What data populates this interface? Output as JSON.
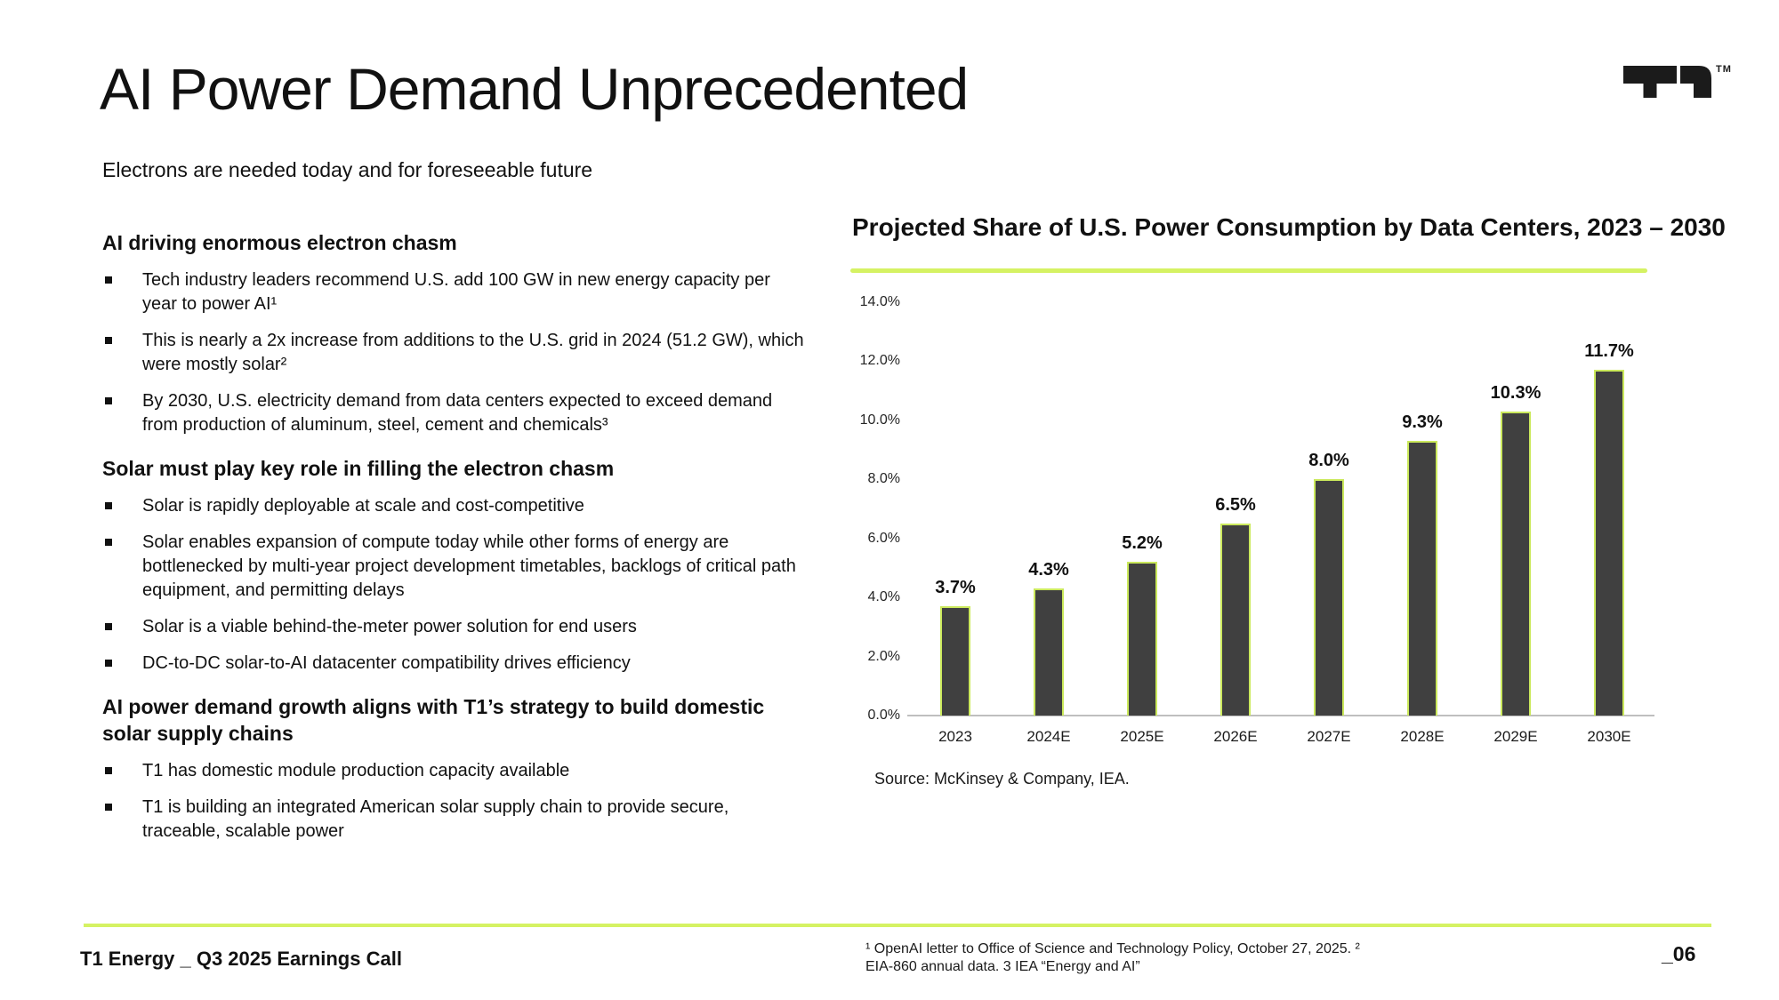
{
  "slide": {
    "title": "AI Power Demand Unprecedented",
    "subtitle": "Electrons are needed today and for foreseeable future"
  },
  "logo": {
    "name": "T1",
    "tm": "TM"
  },
  "left": {
    "sections": [
      {
        "heading": "AI driving enormous electron chasm",
        "bullets": [
          "Tech industry leaders recommend U.S. add 100 GW in new energy capacity per year to power AI¹",
          "This is nearly a 2x increase from additions to the U.S. grid in 2024 (51.2 GW), which were mostly solar²",
          "By 2030, U.S. electricity demand from data centers expected to exceed demand from production of aluminum, steel, cement and chemicals³"
        ]
      },
      {
        "heading": "Solar must play key role in filling the electron chasm",
        "bullets": [
          "Solar is rapidly deployable at scale and cost-competitive",
          "Solar enables expansion of compute today while other forms of energy are bottlenecked by multi-year project development timetables, backlogs of critical path equipment, and permitting delays",
          "Solar is a viable behind-the-meter power solution for end users",
          "DC-to-DC solar-to-AI datacenter compatibility drives efficiency"
        ]
      },
      {
        "heading": "AI power demand growth aligns with T1’s strategy to build domestic solar supply chains",
        "bullets": [
          "T1 has domestic module production capacity available",
          "T1 is building an integrated American solar supply chain to provide secure, traceable, scalable power"
        ]
      }
    ]
  },
  "chart_data": {
    "type": "bar",
    "title": "Projected Share of U.S. Power Consumption by Data Centers, 2023 – 2030",
    "categories": [
      "2023",
      "2024E",
      "2025E",
      "2026E",
      "2027E",
      "2028E",
      "2029E",
      "2030E"
    ],
    "values": [
      3.7,
      4.3,
      5.2,
      6.5,
      8.0,
      9.3,
      10.3,
      11.7
    ],
    "value_labels": [
      "3.7%",
      "4.3%",
      "5.2%",
      "6.5%",
      "8.0%",
      "9.3%",
      "10.3%",
      "11.7%"
    ],
    "ylim": [
      0,
      14
    ],
    "yticks": [
      0,
      2,
      4,
      6,
      8,
      10,
      12,
      14
    ],
    "ytick_labels": [
      "0.0%",
      "2.0%",
      "4.0%",
      "6.0%",
      "8.0%",
      "10.0%",
      "12.0%",
      "14.0%"
    ],
    "xlabel": "",
    "ylabel": "",
    "grid": false,
    "legend": false,
    "bar_fill": "#404040",
    "bar_outline": "#cbe95c",
    "accent_line": "#d5f263",
    "source": "Source: McKinsey & Company, IEA."
  },
  "footer": {
    "left": "T1 Energy _ Q3 2025 Earnings Call",
    "note_line1": "¹ OpenAI letter to Office of Science and Technology Policy, October 27, 2025. ²",
    "note_line2": "EIA-860 annual data. 3 IEA “Energy and AI”",
    "page": "_06"
  }
}
